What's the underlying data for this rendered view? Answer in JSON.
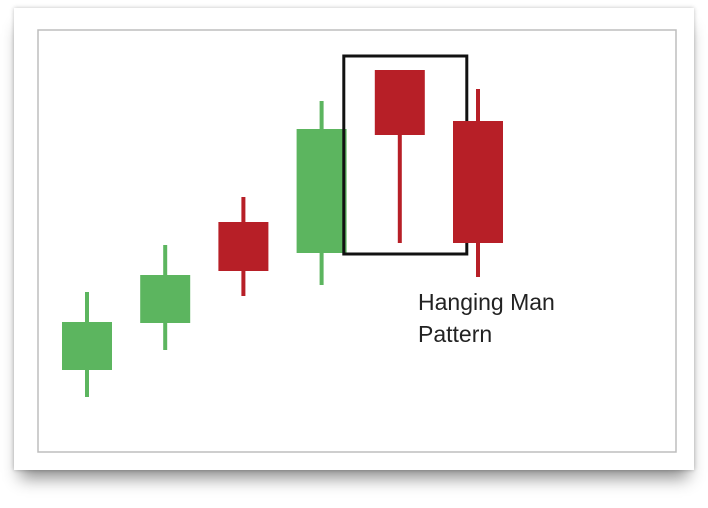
{
  "chart_data": {
    "type": "candlestick",
    "categories": [
      null,
      null,
      null,
      null,
      null,
      null
    ],
    "open": [
      82,
      129,
      230,
      199,
      382,
      331
    ],
    "close": [
      130,
      177,
      181,
      323,
      317,
      209
    ],
    "high": [
      160,
      207,
      255,
      351,
      382,
      363
    ],
    "low": [
      55,
      102,
      156,
      167,
      209,
      175
    ],
    "up_color": "#5cb55f",
    "down_color": "#b71f27",
    "ylim": [
      0,
      422
    ],
    "highlight_index": 4,
    "annotation": "Hanging Man Pattern"
  }
}
